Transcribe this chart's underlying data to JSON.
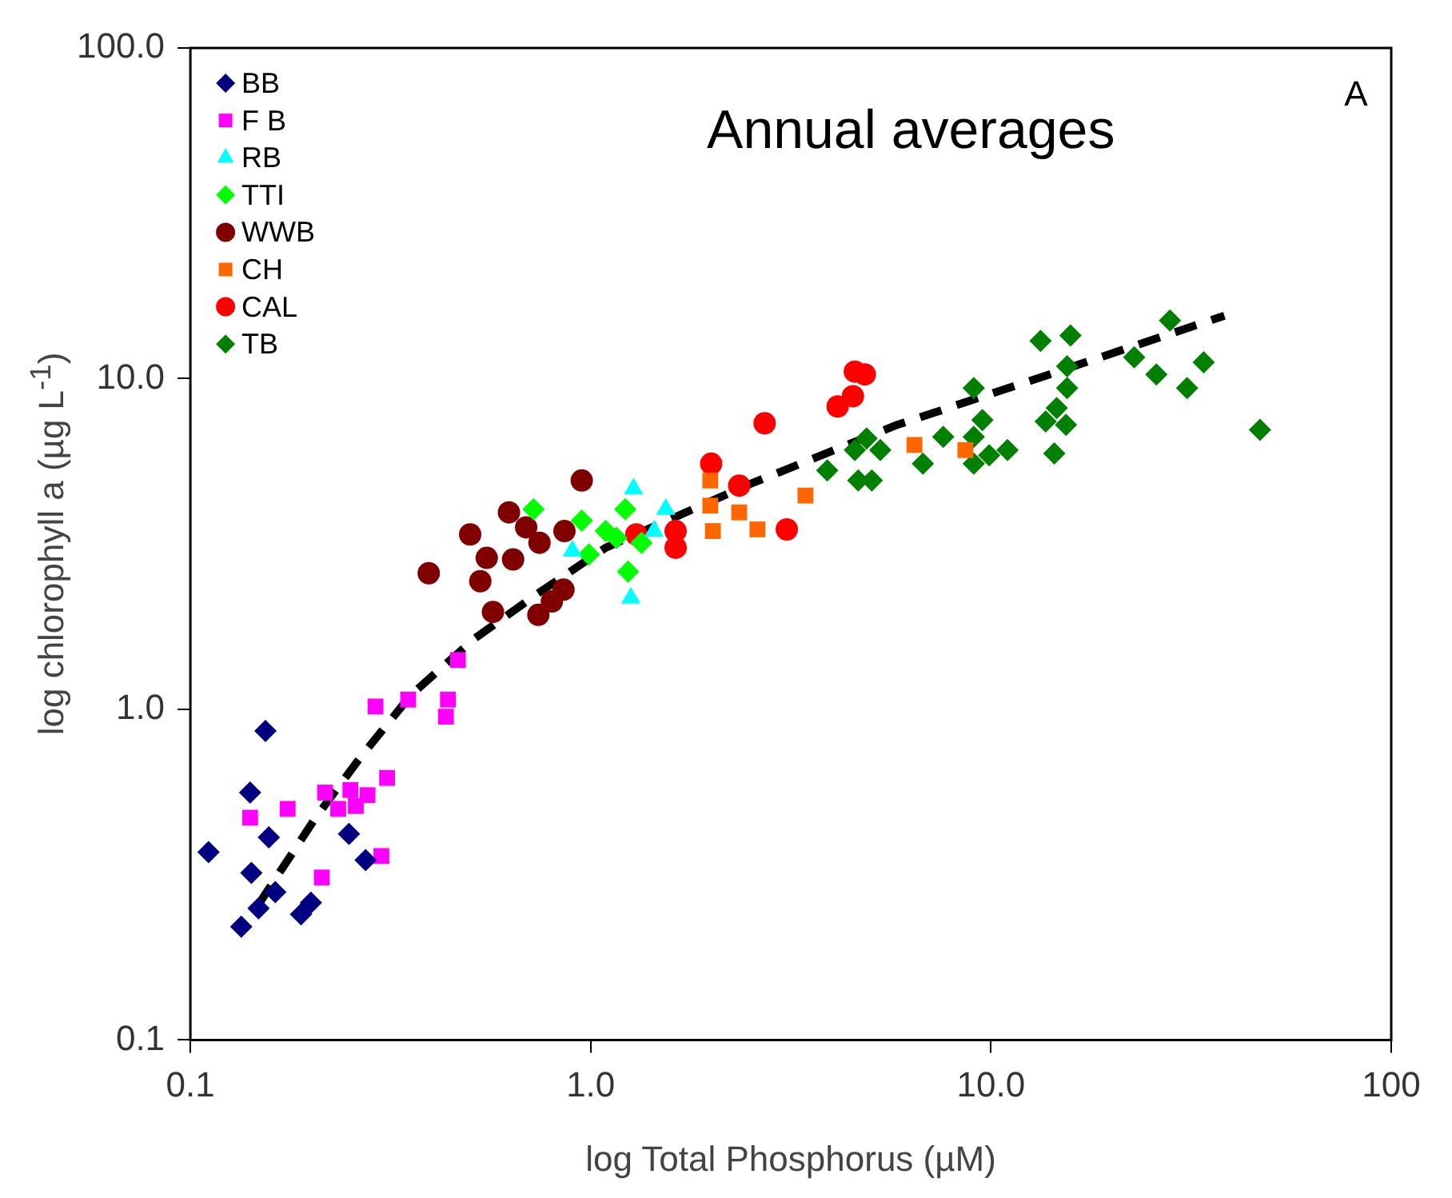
{
  "chart_data": {
    "type": "scatter",
    "xlabel": "log Total Phosphorus (µM)",
    "ylabel": "log chlorophyll a (µg L$^{-1}$)",
    "annotations": [
      "Annual averages",
      "A"
    ],
    "log": "xy",
    "grid": false,
    "legend": "top left",
    "xlim": [
      0.1,
      100
    ],
    "xticks": [
      0.1,
      {
        "value": 1,
        "label": "1.0"
      },
      {
        "value": 10,
        "label": "10.0"
      },
      100
    ],
    "ylim": [
      0.1,
      100
    ],
    "yticks": [
      0.1,
      {
        "value": 1,
        "label": "1.0"
      },
      {
        "value": 10,
        "label": "10.0"
      },
      {
        "value": 100,
        "label": "100.0"
      }
    ],
    "series": [
      {
        "name": "BB",
        "color": "#000080",
        "marker": "diamond",
        "x": [
          0.154,
          0.141,
          0.111,
          0.157,
          0.142,
          0.249,
          0.274,
          0.148,
          0.134,
          0.163,
          0.189,
          0.2
        ],
        "values": [
          0.86,
          0.56,
          0.37,
          0.41,
          0.32,
          0.42,
          0.35,
          0.25,
          0.22,
          0.28,
          0.24,
          0.26
        ]
      },
      {
        "name": "F B",
        "color": "#ff00ff",
        "marker": "square",
        "x": [
          0.141,
          0.175,
          0.213,
          0.3,
          0.217,
          0.251,
          0.277,
          0.31,
          0.259,
          0.234,
          0.29,
          0.35,
          0.435,
          0.44,
          0.466
        ],
        "values": [
          0.47,
          0.5,
          0.31,
          0.36,
          0.56,
          0.57,
          0.55,
          0.62,
          0.51,
          0.5,
          1.02,
          1.07,
          0.95,
          1.07,
          1.41
        ]
      },
      {
        "name": "RB",
        "color": "#00ffff",
        "marker": "triangle",
        "x": [
          1.28,
          1.54,
          1.26,
          0.9,
          1.44
        ],
        "values": [
          4.64,
          4.03,
          2.17,
          3.01,
          3.46
        ]
      },
      {
        "name": "TTI",
        "color": "#00ff00",
        "marker": "diamond",
        "x": [
          0.72,
          0.95,
          0.99,
          1.22,
          1.16,
          1.24,
          1.34,
          1.09
        ],
        "values": [
          4.03,
          3.72,
          2.94,
          4.03,
          3.3,
          2.61,
          3.19,
          3.46
        ]
      },
      {
        "name": "WWB",
        "color": "#800000",
        "marker": "circle",
        "x": [
          0.394,
          0.5,
          0.625,
          0.69,
          0.55,
          0.64,
          0.53,
          0.57,
          0.745,
          0.86,
          0.74,
          0.855,
          0.95,
          0.8
        ],
        "values": [
          2.58,
          3.38,
          3.94,
          3.55,
          2.87,
          2.84,
          2.44,
          1.97,
          3.19,
          3.46,
          1.93,
          2.3,
          4.92,
          2.12
        ]
      },
      {
        "name": "CH",
        "color": "#ff6600",
        "marker": "square",
        "x": [
          1.99,
          2.02,
          2.35,
          2.61,
          3.44,
          6.44,
          8.63,
          1.99
        ],
        "values": [
          4.92,
          3.46,
          3.94,
          3.5,
          4.43,
          6.3,
          6.08,
          4.13
        ]
      },
      {
        "name": "CAL",
        "color": "#ff0000",
        "marker": "circle",
        "x": [
          1.3,
          1.63,
          1.63,
          2.0,
          2.35,
          2.72,
          3.09,
          4.14,
          4.52,
          4.57,
          4.84
        ],
        "values": [
          3.38,
          3.46,
          3.08,
          5.53,
          4.75,
          7.33,
          3.5,
          8.24,
          8.85,
          10.5,
          10.3
        ]
      },
      {
        "name": "TB",
        "color": "#008000",
        "marker": "diamond",
        "x": [
          3.9,
          4.66,
          5.04,
          4.57,
          5.29,
          4.89,
          6.76,
          7.6,
          9.06,
          9.52,
          9.06,
          9.06,
          9.9,
          11.0,
          13.3,
          15.8,
          15.5,
          15.5,
          14.6,
          13.7,
          15.4,
          14.4,
          22.8,
          25.9,
          28.0,
          30.9,
          34.0,
          47.0
        ],
        "values": [
          5.28,
          4.92,
          4.92,
          6.08,
          6.08,
          6.59,
          5.53,
          6.67,
          9.37,
          7.5,
          6.67,
          5.53,
          5.87,
          6.08,
          13.0,
          13.5,
          10.9,
          9.37,
          8.15,
          7.42,
          7.25,
          5.94,
          11.6,
          10.3,
          15.0,
          9.37,
          11.2,
          7.0
        ]
      },
      {
        "type": "line",
        "color": "#000000",
        "marker": "none",
        "line_style": "dashed",
        "x": [
          0.148,
          0.206,
          0.267,
          0.357,
          0.514,
          0.738,
          1.09,
          2.51,
          5.83,
          14.0,
          38.3
        ],
        "values": [
          0.257,
          0.472,
          0.72,
          1.11,
          1.64,
          2.24,
          3.08,
          4.81,
          7.25,
          10.3,
          15.5
        ]
      }
    ]
  }
}
